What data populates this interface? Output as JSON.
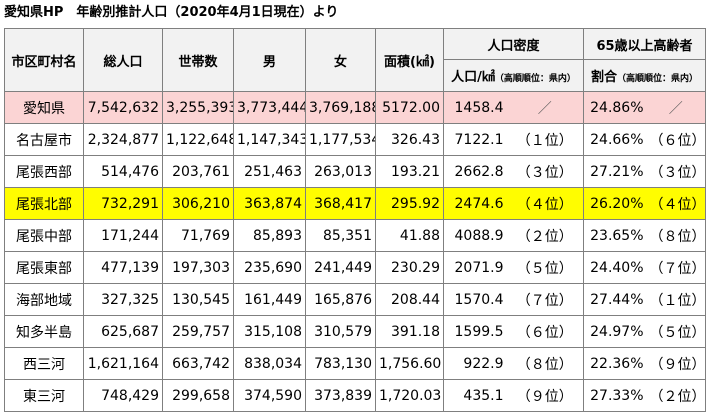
{
  "title": "愛知県HP　年齢別推計人口（2020年4月1日現在）より",
  "headers": {
    "municipality": "市区町村名",
    "total_population": "総人口",
    "households": "世帯数",
    "male": "男",
    "female": "女",
    "area": "面積(㎢)",
    "density": "人口密度",
    "density_sub": "人口/㎢",
    "density_sub_note": "（高順順位：県内）",
    "elderly": "65歳以上高齢者",
    "elderly_sub": "割合",
    "elderly_sub_note": "（高順順位：県内）"
  },
  "rows": [
    {
      "name": "愛知県",
      "total": "7,542,632",
      "households": "3,255,393",
      "male": "3,773,444",
      "female": "3,769,188",
      "area": "5172.00",
      "density": "1458.4",
      "density_rank": "／",
      "elderly": "24.86%",
      "elderly_rank": "／",
      "style": "pref"
    },
    {
      "name": "名古屋市",
      "total": "2,324,877",
      "households": "1,122,648",
      "male": "1,147,343",
      "female": "1,177,534",
      "area": "326.43",
      "density": "7122.1",
      "density_rank": "（１位）",
      "elderly": "24.66%",
      "elderly_rank": "（６位）",
      "style": ""
    },
    {
      "name": "尾張西部",
      "total": "514,476",
      "households": "203,761",
      "male": "251,463",
      "female": "263,013",
      "area": "193.21",
      "density": "2662.8",
      "density_rank": "（３位）",
      "elderly": "27.21%",
      "elderly_rank": "（３位）",
      "style": ""
    },
    {
      "name": "尾張北部",
      "total": "732,291",
      "households": "306,210",
      "male": "363,874",
      "female": "368,417",
      "area": "295.92",
      "density": "2474.6",
      "density_rank": "（４位）",
      "elderly": "26.20%",
      "elderly_rank": "（４位）",
      "style": "hl"
    },
    {
      "name": "尾張中部",
      "total": "171,244",
      "households": "71,769",
      "male": "85,893",
      "female": "85,351",
      "area": "41.88",
      "density": "4088.9",
      "density_rank": "（２位）",
      "elderly": "23.65%",
      "elderly_rank": "（８位）",
      "style": ""
    },
    {
      "name": "尾張東部",
      "total": "477,139",
      "households": "197,303",
      "male": "235,690",
      "female": "241,449",
      "area": "230.29",
      "density": "2071.9",
      "density_rank": "（５位）",
      "elderly": "24.40%",
      "elderly_rank": "（７位）",
      "style": ""
    },
    {
      "name": "海部地域",
      "total": "327,325",
      "households": "130,545",
      "male": "161,449",
      "female": "165,876",
      "area": "208.44",
      "density": "1570.4",
      "density_rank": "（７位）",
      "elderly": "27.44%",
      "elderly_rank": "（１位）",
      "style": ""
    },
    {
      "name": "知多半島",
      "total": "625,687",
      "households": "259,757",
      "male": "315,108",
      "female": "310,579",
      "area": "391.18",
      "density": "1599.5",
      "density_rank": "（６位）",
      "elderly": "24.97%",
      "elderly_rank": "（５位）",
      "style": ""
    },
    {
      "name": "西三河",
      "total": "1,621,164",
      "households": "663,742",
      "male": "838,034",
      "female": "783,130",
      "area": "1,756.60",
      "density": "922.9",
      "density_rank": "（８位）",
      "elderly": "22.36%",
      "elderly_rank": "（９位）",
      "style": ""
    },
    {
      "name": "東三河",
      "total": "748,429",
      "households": "299,658",
      "male": "374,590",
      "female": "373,839",
      "area": "1,720.03",
      "density": "435.1",
      "density_rank": "（９位）",
      "elderly": "27.33%",
      "elderly_rank": "（２位）",
      "style": ""
    }
  ]
}
